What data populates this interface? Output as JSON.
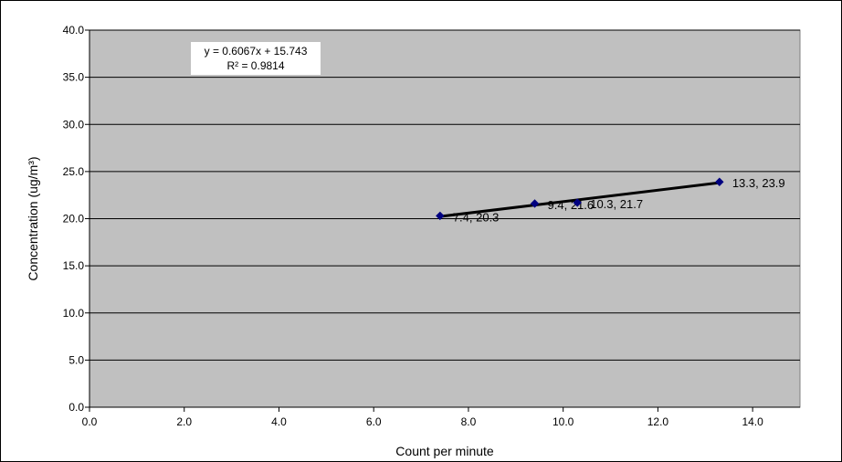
{
  "chart_data": {
    "type": "scatter",
    "xlabel": "Count per minute",
    "ylabel": "Concentration (ug/m³)",
    "xlim": [
      0,
      15
    ],
    "ylim": [
      0,
      40
    ],
    "xticks": [
      "0.0",
      "2.0",
      "4.0",
      "6.0",
      "8.0",
      "10.0",
      "12.0",
      "14.0"
    ],
    "yticks": [
      "0.0",
      "5.0",
      "10.0",
      "15.0",
      "20.0",
      "25.0",
      "30.0",
      "35.0",
      "40.0"
    ],
    "grid": "horizontal",
    "plot_background": "#c0c0c0",
    "marker_color": "#000080",
    "trendline_color": "#000000",
    "series": [
      {
        "points": [
          {
            "x": 7.4,
            "y": 20.3,
            "label": "7.4, 20.3"
          },
          {
            "x": 9.4,
            "y": 21.6,
            "label": "9.4, 21.6"
          },
          {
            "x": 10.3,
            "y": 21.7,
            "label": "10.3, 21.7"
          },
          {
            "x": 13.3,
            "y": 23.9,
            "label": "13.3, 23.9"
          }
        ]
      }
    ],
    "trendline": {
      "slope": 0.6067,
      "intercept": 15.743,
      "x_range": [
        7.4,
        13.3
      ],
      "equation": "y = 0.6067x + 15.743",
      "r_squared": "R² = 0.9814"
    }
  }
}
